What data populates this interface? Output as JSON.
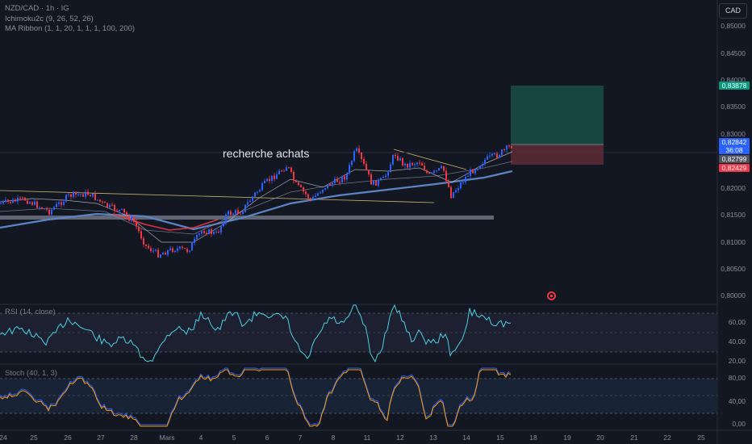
{
  "header": {
    "symbol_line": "NZD/CAD · 1h · IG",
    "indicator_1": "Ichimoku2c (9, 26, 52, 26)",
    "indicator_2": "MA Ribbon (1, 1, 20, 1, 1, 1, 100, 200)",
    "currency_button": "CAD"
  },
  "annotation": "recherche achats",
  "price_axis": {
    "ticks": [
      "0,85000",
      "0,84500",
      "0,84000",
      "0,83500",
      "0,83000",
      "0,82500",
      "0,82000",
      "0,81500",
      "0,81000",
      "0,80500",
      "0,80000"
    ],
    "tags": {
      "target": "0,83878",
      "current_price": "0,82842",
      "countdown": "36:08",
      "entry": "0,82799",
      "stop": "0,82429"
    }
  },
  "rsi_pane": {
    "label": "RSI (14, close)",
    "ticks": [
      "60,00",
      "40,00",
      "20,00"
    ]
  },
  "stoch_pane": {
    "label": "Stoch (40, 1, 3)",
    "ticks": [
      "80,00",
      "40,00",
      "0,00"
    ]
  },
  "time_axis": [
    "24",
    "25",
    "26",
    "27",
    "28",
    "Mars",
    "4",
    "5",
    "6",
    "7",
    "8",
    "11",
    "12",
    "13",
    "14",
    "15",
    "18",
    "19",
    "20",
    "21",
    "22",
    "25"
  ],
  "colors": {
    "background": "#131722",
    "bull_candle": "#2962ff",
    "bear_candle": "#f23645",
    "ma_long": "#5b84c4",
    "target_zone": "#1b4a45",
    "stop_zone": "#5a2b35",
    "rsi_line": "#4dd0e1",
    "stoch_k": "#2962ff",
    "stoch_d": "#ff9800"
  }
}
